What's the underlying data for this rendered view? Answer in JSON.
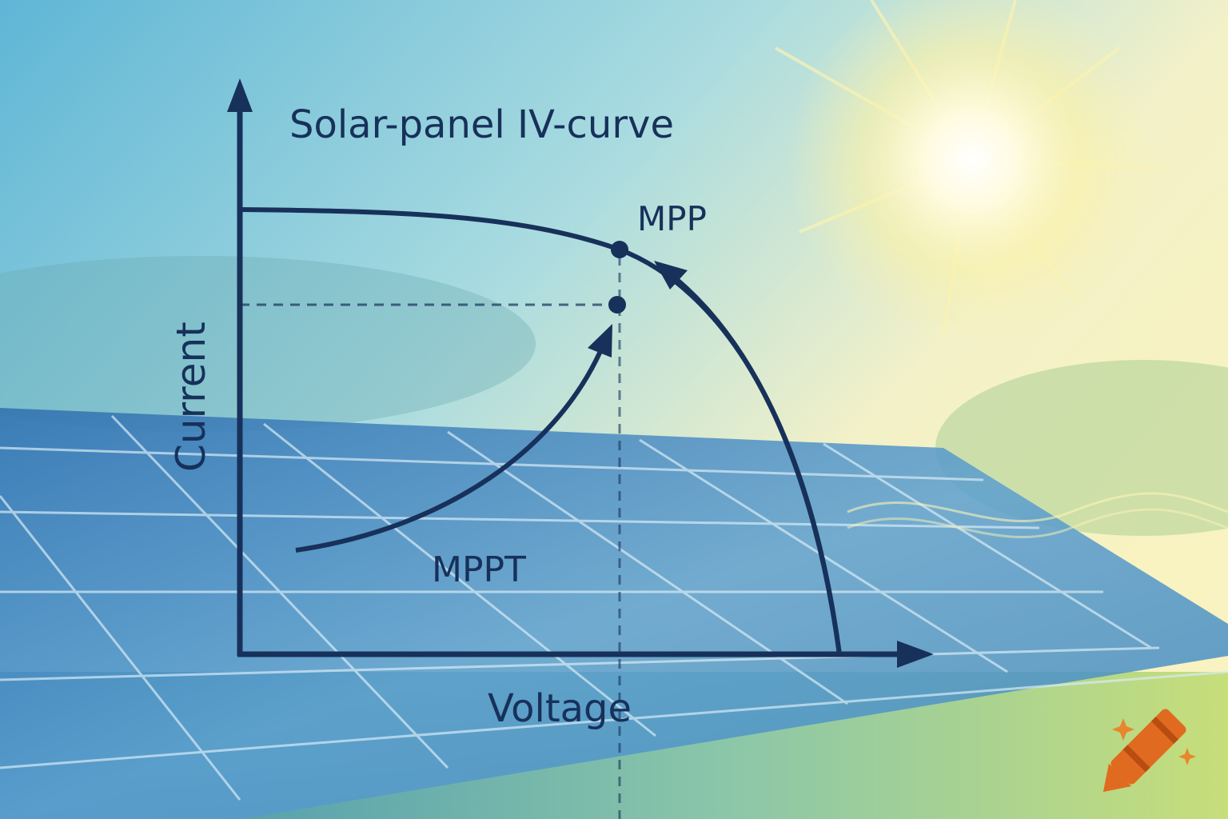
{
  "diagram": {
    "title": "Solar-panel IV-curve",
    "x_axis_label": "Voltage",
    "y_axis_label": "Current",
    "mpp_label": "MPP",
    "mppt_label": "MPPT"
  }
}
